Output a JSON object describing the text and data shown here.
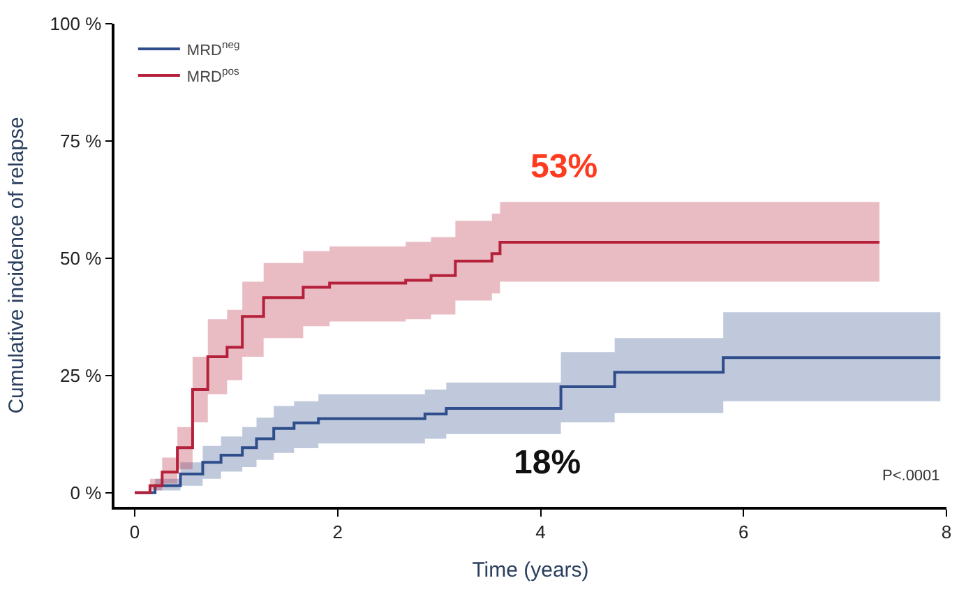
{
  "chart_data": {
    "type": "step",
    "xlabel": "Time (years)",
    "ylabel": "Cumulative incidence of relapse",
    "xlim": [
      -0.2,
      8
    ],
    "ylim": [
      -3,
      100
    ],
    "xticks": [
      0,
      2,
      4,
      6,
      8
    ],
    "yticks": [
      {
        "value": 0,
        "label": "0 %"
      },
      {
        "value": 25,
        "label": "25 %"
      },
      {
        "value": 50,
        "label": "50 %"
      },
      {
        "value": 75,
        "label": "75 %"
      },
      {
        "value": 100,
        "label": "100 %"
      }
    ],
    "legend": "top left",
    "marker": "none",
    "line_style": "solid",
    "series": [
      {
        "name": "MRD$^{neg}$",
        "color": "#2e4d8a",
        "x": [
          0,
          0.2,
          0.45,
          0.67,
          0.85,
          1.06,
          1.2,
          1.37,
          1.57,
          1.81,
          2.86,
          3.07,
          4.2,
          4.73,
          5.8,
          7.94
        ],
        "values": [
          0,
          1.5,
          4,
          6.5,
          8,
          9.6,
          11.5,
          13.7,
          14.9,
          15.8,
          16.8,
          18,
          22.6,
          25.7,
          28.8,
          28.8
        ],
        "lower": [
          0,
          0.5,
          1.5,
          3,
          4.5,
          5.5,
          7,
          8.5,
          9.5,
          10.5,
          11.5,
          12.5,
          15,
          17,
          19.5,
          19.5
        ],
        "upper": [
          0,
          3,
          6.5,
          10,
          12,
          14,
          16,
          18.5,
          19.5,
          21,
          22,
          23.5,
          30,
          33,
          38.5,
          38.5
        ]
      },
      {
        "name": "MRD$^{pos}$",
        "color": "#b5203a",
        "x": [
          0,
          0.15,
          0.27,
          0.42,
          0.57,
          0.72,
          0.91,
          1.06,
          1.27,
          1.66,
          1.92,
          2.67,
          2.92,
          3.16,
          3.52,
          3.6,
          7.34
        ],
        "values": [
          0,
          1.5,
          4.4,
          9.6,
          22,
          29,
          31,
          37.6,
          41.6,
          43.8,
          44.7,
          45.3,
          46.3,
          49.4,
          51,
          53.4,
          53.4
        ],
        "lower": [
          0,
          0.5,
          2,
          5,
          15,
          21,
          24,
          29,
          33,
          35.5,
          36.5,
          37,
          38,
          41,
          42.5,
          45,
          45
        ],
        "upper": [
          0,
          3,
          7.5,
          14,
          29,
          37,
          39,
          45,
          49,
          51.5,
          52.5,
          53.5,
          54.5,
          58,
          59.5,
          62,
          62
        ]
      }
    ],
    "annotations": [
      "53%",
      "18%",
      "P<.0001"
    ]
  }
}
